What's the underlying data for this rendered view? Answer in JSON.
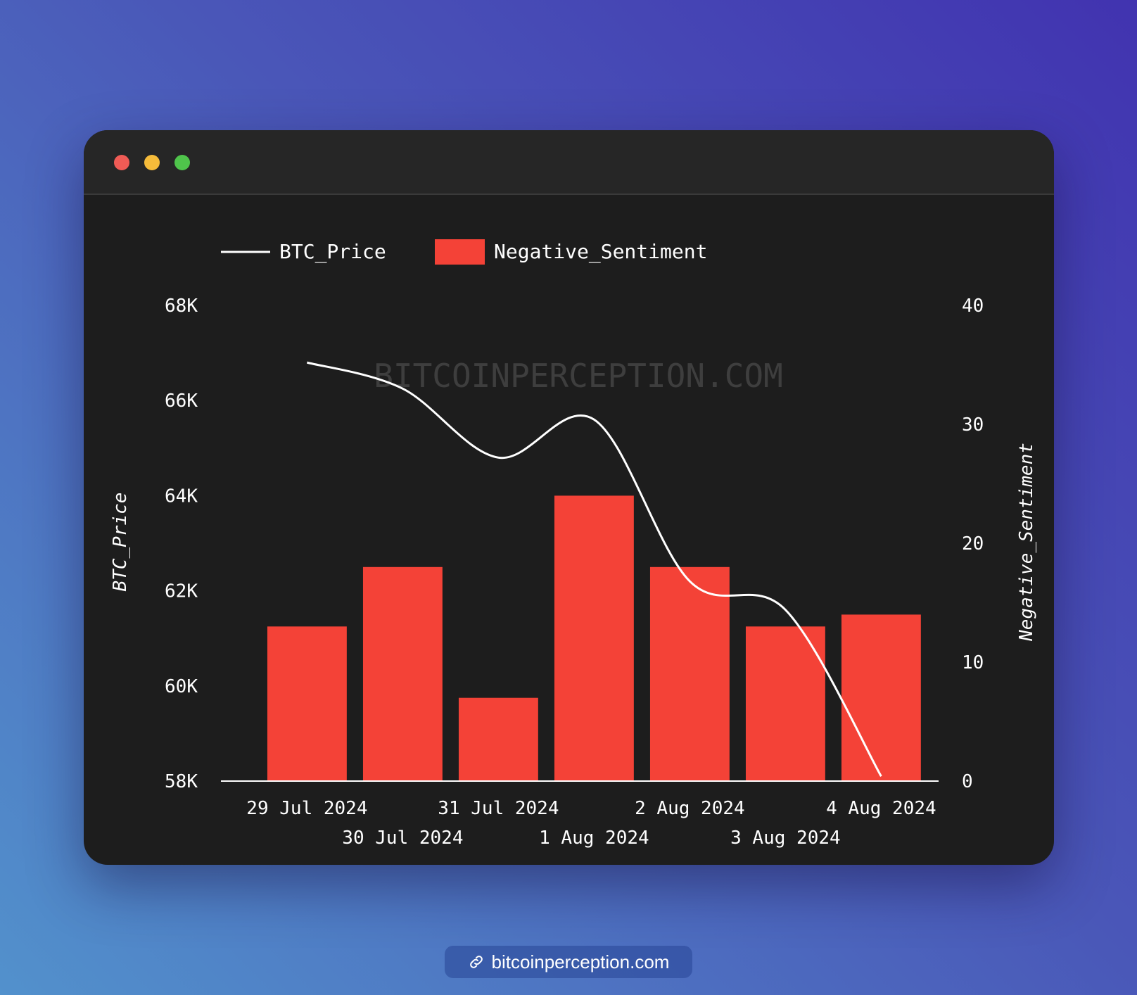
{
  "window": {
    "controls": [
      "close",
      "minimize",
      "maximize"
    ]
  },
  "watermark": "BITCOINPERCEPTION.COM",
  "footer": {
    "icon": "link-icon",
    "text": "bitcoinperception.com"
  },
  "colors": {
    "bar": "#f44237",
    "line": "#ffffff",
    "background": "#1d1d1d"
  },
  "chart_data": {
    "type": "bar+line",
    "categories": [
      "29 Jul 2024",
      "30 Jul 2024",
      "31 Jul 2024",
      "1 Aug 2024",
      "2 Aug 2024",
      "3 Aug 2024",
      "4 Aug 2024"
    ],
    "legend": [
      "BTC_Price",
      "Negative_Sentiment"
    ],
    "legend_position": "top-left",
    "grid": false,
    "series": [
      {
        "name": "Negative_Sentiment",
        "type": "bar",
        "axis": "right",
        "values": [
          13,
          18,
          7,
          24,
          18,
          13,
          14
        ]
      },
      {
        "name": "BTC_Price",
        "type": "line",
        "axis": "left",
        "smooth": true,
        "values": [
          66800,
          66250,
          64800,
          65600,
          62200,
          61600,
          58100
        ]
      }
    ],
    "y_left": {
      "label": "BTC_Price",
      "range": [
        58000,
        68000
      ],
      "ticks": [
        58000,
        60000,
        62000,
        64000,
        66000,
        68000
      ],
      "tick_labels": [
        "58K",
        "60K",
        "62K",
        "64K",
        "66K",
        "68K"
      ]
    },
    "y_right": {
      "label": "Negative_Sentiment",
      "range": [
        0,
        40
      ],
      "ticks": [
        0,
        10,
        20,
        30,
        40
      ],
      "tick_labels": [
        "0",
        "10",
        "20",
        "30",
        "40"
      ]
    }
  }
}
